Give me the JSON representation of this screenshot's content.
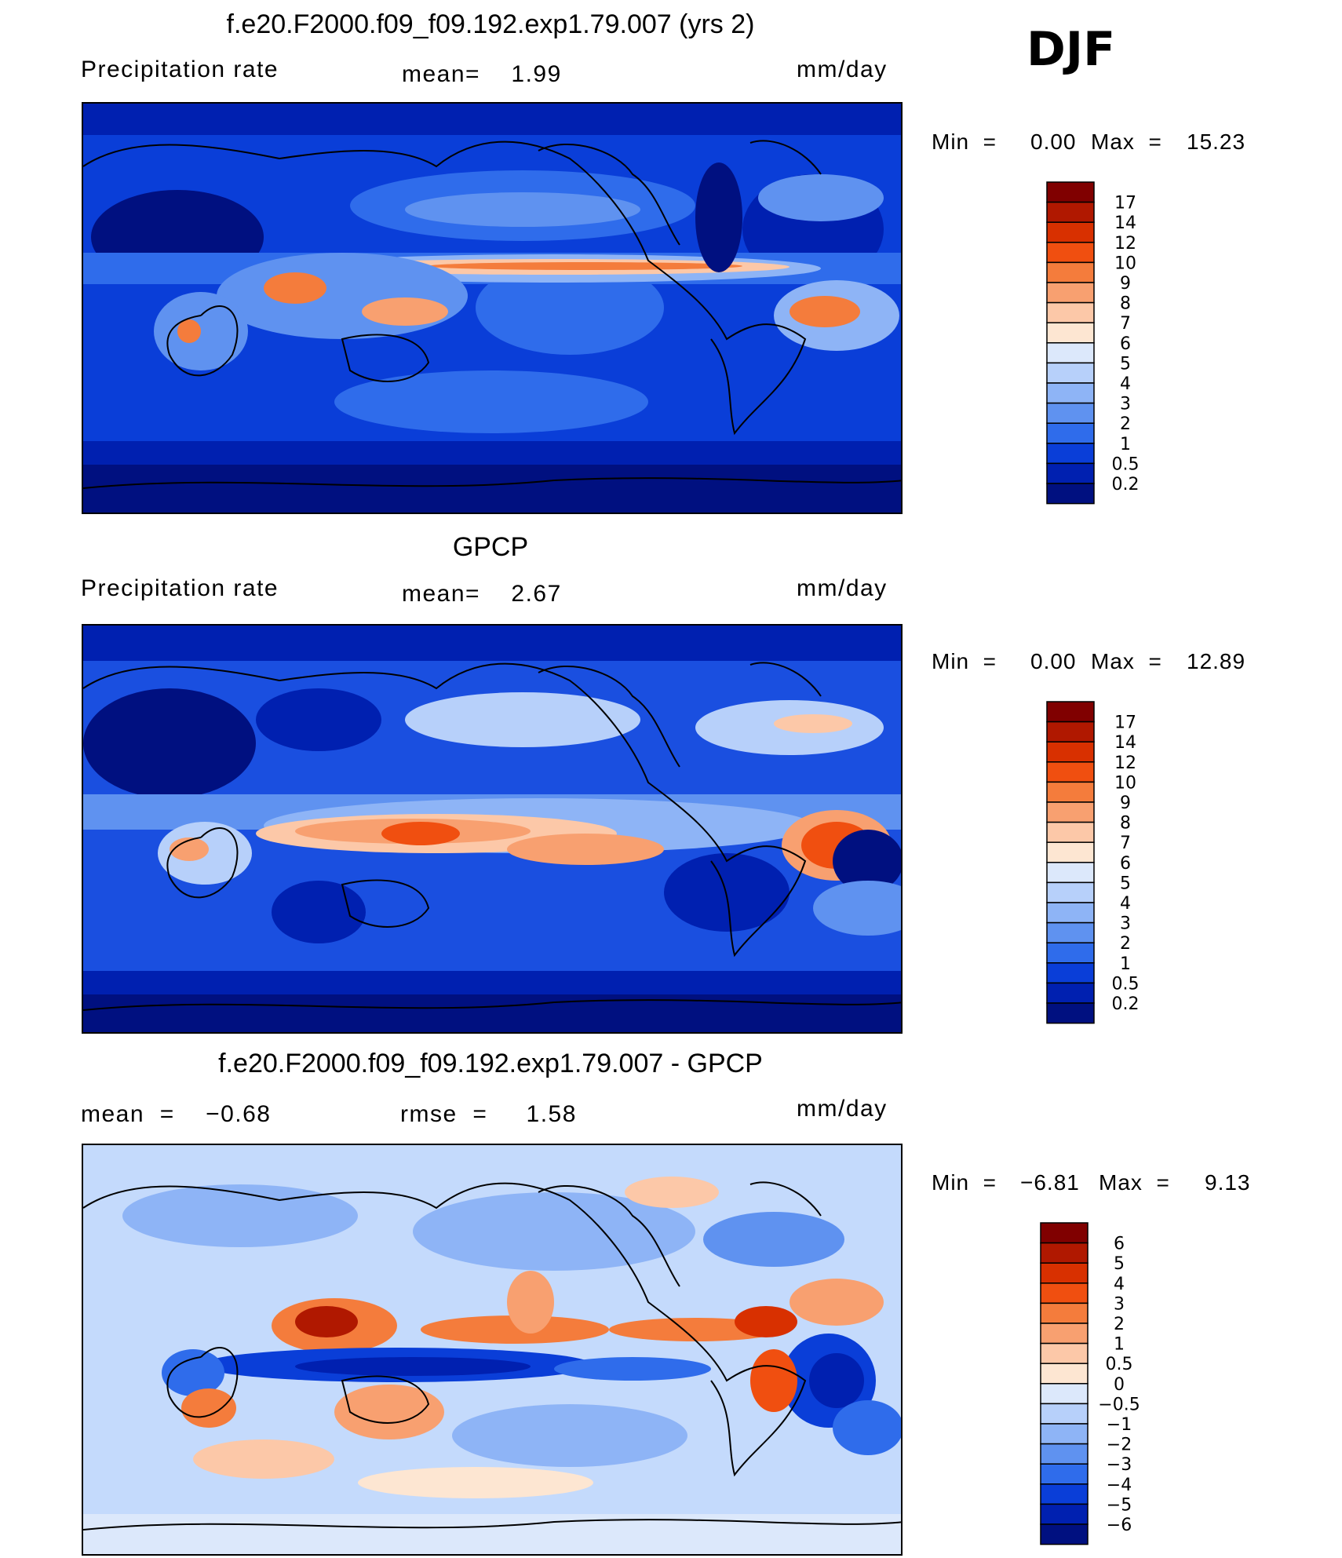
{
  "season": "DJF",
  "panels": [
    {
      "title": "f.e20.F2000.f09_f09.192.exp1.79.007 (yrs 2)",
      "left_text": "Precipitation  rate",
      "center_text": "mean=    1.99",
      "units": "mm/day",
      "min_label": "Min  =",
      "min_value": "0.00",
      "max_label": "Max  =",
      "max_value": "15.23",
      "colorbar": {
        "levels": [
          "17",
          "14",
          "12",
          "10",
          "9",
          "8",
          "7",
          "6",
          "5",
          "4",
          "3",
          "2",
          "1",
          "0.5",
          "0.2"
        ],
        "colors": [
          "#800000",
          "#b01800",
          "#d83000",
          "#f04f10",
          "#f47c3c",
          "#f8a070",
          "#fcc8a8",
          "#fde6d2",
          "#dce8fb",
          "#b7d0fa",
          "#8eb4f6",
          "#5f92f0",
          "#2f6ceb",
          "#0a3ed8",
          "#0020b0",
          "#001080"
        ]
      },
      "map_base": "#0a3ed8"
    },
    {
      "title": "GPCP",
      "left_text": "Precipitation  rate",
      "center_text": "mean=    2.67",
      "units": "mm/day",
      "min_label": "Min  =",
      "min_value": "0.00",
      "max_label": "Max  =",
      "max_value": "12.89",
      "colorbar": {
        "levels": [
          "17",
          "14",
          "12",
          "10",
          "9",
          "8",
          "7",
          "6",
          "5",
          "4",
          "3",
          "2",
          "1",
          "0.5",
          "0.2"
        ],
        "colors": [
          "#800000",
          "#b01800",
          "#d83000",
          "#f04f10",
          "#f47c3c",
          "#f8a070",
          "#fcc8a8",
          "#fde6d2",
          "#dce8fb",
          "#b7d0fa",
          "#8eb4f6",
          "#5f92f0",
          "#2f6ceb",
          "#0a3ed8",
          "#0020b0",
          "#001080"
        ]
      },
      "map_base": "#1a4fe0"
    },
    {
      "title": "f.e20.F2000.f09_f09.192.exp1.79.007 - GPCP",
      "left_text": "mean  =    −0.68",
      "center_text": "rmse  =     1.58",
      "units": "mm/day",
      "min_label": "Min  =",
      "min_value": "−6.81",
      "max_label": "Max  =",
      "max_value": "9.13",
      "colorbar": {
        "levels": [
          "6",
          "5",
          "4",
          "3",
          "2",
          "1",
          "0.5",
          "0",
          "−0.5",
          "−1",
          "−2",
          "−3",
          "−4",
          "−5",
          "−6"
        ],
        "colors": [
          "#800000",
          "#b01800",
          "#d83000",
          "#f04f10",
          "#f47c3c",
          "#f8a070",
          "#fcc8a8",
          "#fde6d2",
          "#dce8fb",
          "#b7d0fa",
          "#8eb4f6",
          "#5f92f0",
          "#2f6ceb",
          "#0a3ed8",
          "#0020b0",
          "#001080"
        ]
      },
      "map_base": "#c4dafc"
    }
  ]
}
